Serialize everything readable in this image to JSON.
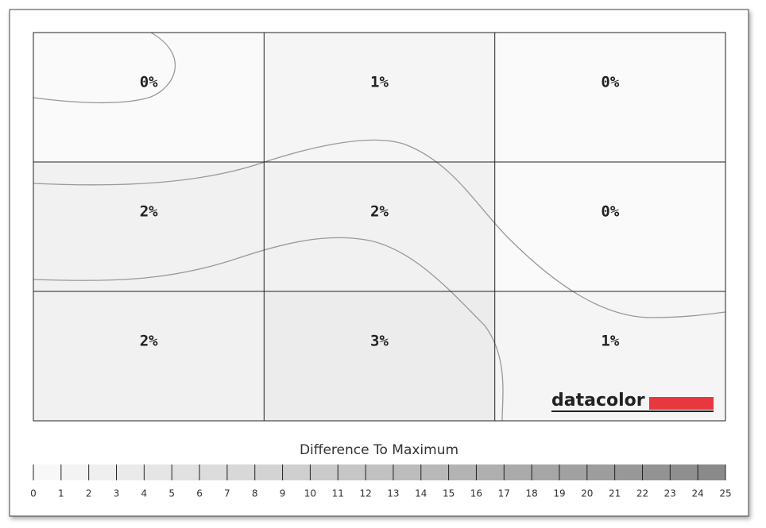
{
  "chart_data": {
    "type": "heatmap",
    "values": [
      [
        0,
        1,
        0
      ],
      [
        2,
        2,
        0
      ],
      [
        2,
        3,
        1
      ]
    ],
    "value_labels": [
      [
        "0%",
        "1%",
        "0%"
      ],
      [
        "2%",
        "2%",
        "0%"
      ],
      [
        "2%",
        "3%",
        "1%"
      ]
    ],
    "colorbar_title": "Difference To Maximum",
    "zlim": [
      0,
      25
    ],
    "zticks": [
      0,
      1,
      2,
      3,
      4,
      5,
      6,
      7,
      8,
      9,
      10,
      11,
      12,
      13,
      14,
      15,
      16,
      17,
      18,
      19,
      20,
      21,
      22,
      23,
      24,
      25
    ],
    "logo": "datacolor",
    "logo_color": "#e8383d"
  }
}
